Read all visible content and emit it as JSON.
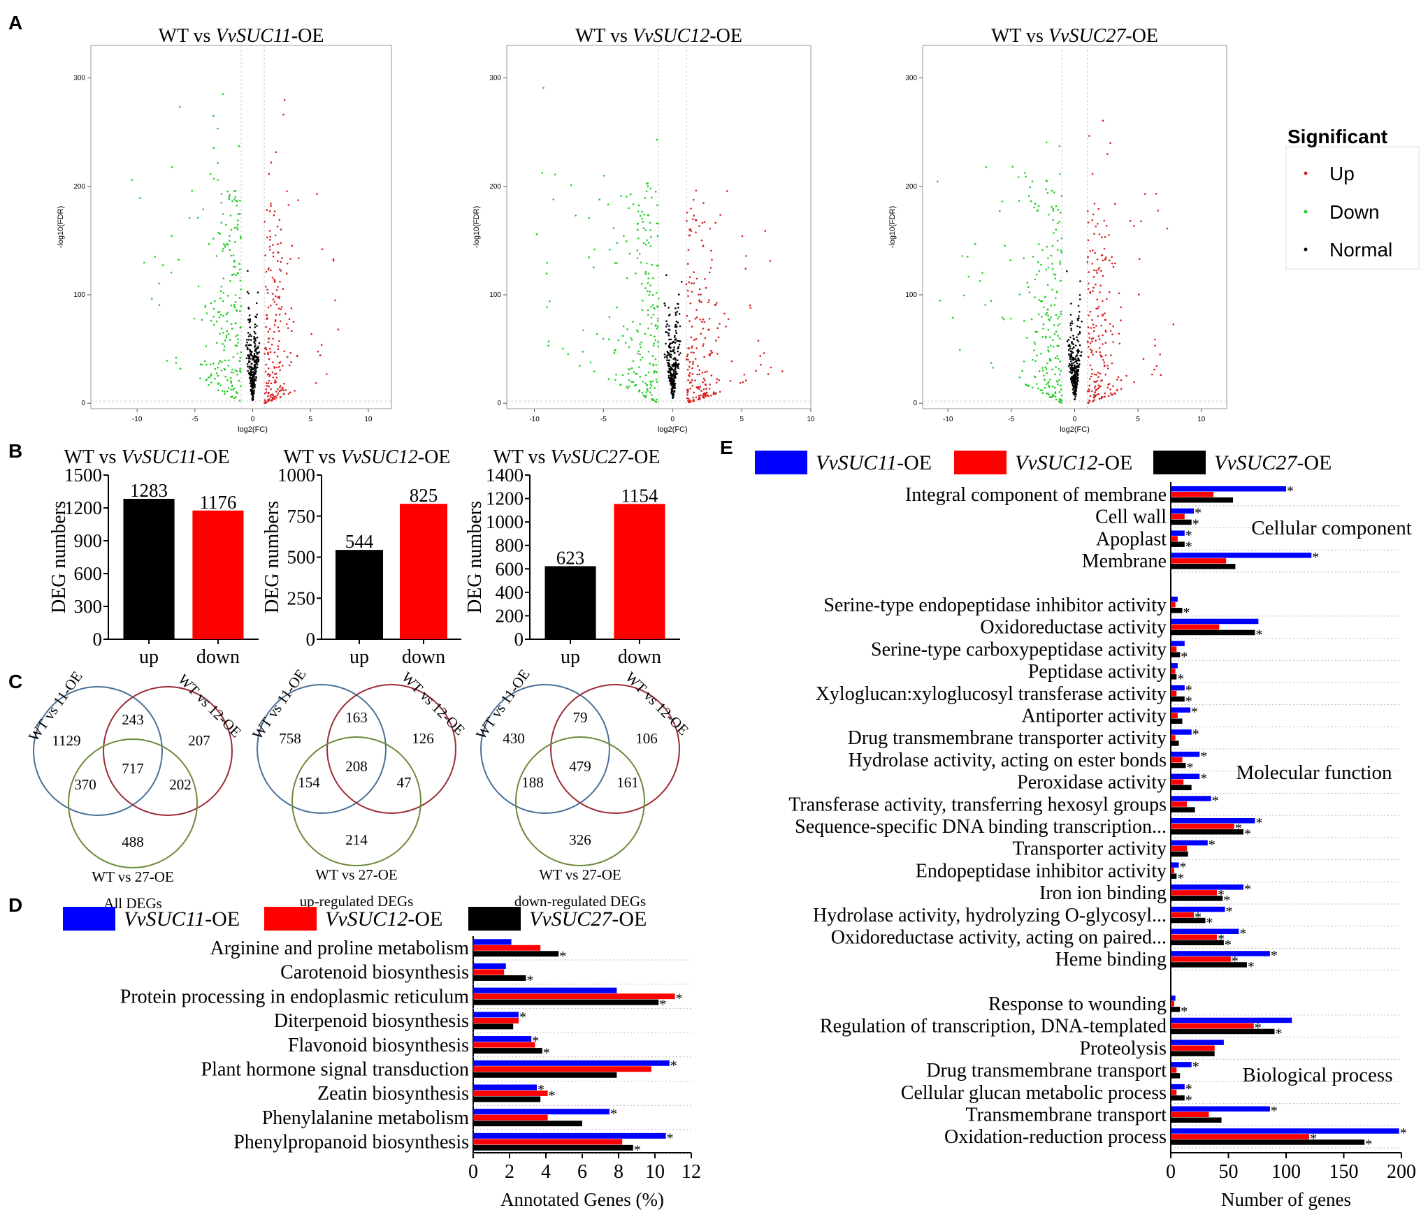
{
  "panel_letters": {
    "a": "A",
    "b": "B",
    "c": "C",
    "d": "D",
    "e": "E"
  },
  "legend_A": {
    "title": "Significant",
    "items": [
      {
        "label": "Up",
        "color": "#d62020"
      },
      {
        "label": "Down",
        "color": "#22cc22"
      },
      {
        "label": "Normal",
        "color": "#000000"
      }
    ]
  },
  "chart_data": [
    {
      "id": "A1",
      "type": "scatter",
      "title_prefix": "WT vs ",
      "title_gene": "VvSUC11",
      "title_suffix": "-OE",
      "xlabel": "log2(FC)",
      "ylabel": "-log10(FDR)",
      "xlim": [
        -14,
        12
      ],
      "ylim": [
        -5,
        330
      ],
      "xticks": [
        "-10",
        "-5",
        "0",
        "5",
        "10"
      ],
      "yticks": [
        "0",
        "100",
        "200",
        "300"
      ],
      "series": [
        "Up",
        "Down",
        "Normal"
      ]
    },
    {
      "id": "A2",
      "type": "scatter",
      "title_prefix": "WT vs ",
      "title_gene": "VvSUC12",
      "title_suffix": "-OE",
      "xlabel": "log2(FC)",
      "ylabel": "-log10(FDR)",
      "xlim": [
        -12,
        10
      ],
      "ylim": [
        -5,
        330
      ],
      "xticks": [
        "-10",
        "-5",
        "0",
        "5",
        "10"
      ],
      "yticks": [
        "0",
        "100",
        "200",
        "300"
      ],
      "series": [
        "Up",
        "Down",
        "Normal"
      ]
    },
    {
      "id": "A3",
      "type": "scatter",
      "title_prefix": "WT vs ",
      "title_gene": "VvSUC27",
      "title_suffix": "-OE",
      "xlabel": "log2(FC)",
      "ylabel": "-log10(FDR)",
      "xlim": [
        -12,
        12
      ],
      "ylim": [
        -5,
        330
      ],
      "xticks": [
        "-10",
        "-5",
        "0",
        "5",
        "10"
      ],
      "yticks": [
        "0",
        "100",
        "200",
        "300"
      ],
      "series": [
        "Up",
        "Down",
        "Normal"
      ]
    },
    {
      "id": "B1",
      "type": "bar",
      "title_prefix": "WT vs ",
      "title_gene": "VvSUC11",
      "title_suffix": "-OE",
      "ylabel": "DEG numbers",
      "categories": [
        "up",
        "down"
      ],
      "values": [
        1283,
        1176
      ],
      "value_labels": [
        "1283",
        "1176"
      ],
      "colors": [
        "#000000",
        "#ff0000"
      ],
      "ylim": [
        0,
        1500
      ],
      "yticks": [
        "0",
        "300",
        "600",
        "900",
        "1200",
        "1500"
      ]
    },
    {
      "id": "B2",
      "type": "bar",
      "title_prefix": "WT vs ",
      "title_gene": "VvSUC12",
      "title_suffix": "-OE",
      "ylabel": "DEG numbers",
      "categories": [
        "up",
        "down"
      ],
      "values": [
        544,
        825
      ],
      "value_labels": [
        "544",
        "825"
      ],
      "colors": [
        "#000000",
        "#ff0000"
      ],
      "ylim": [
        0,
        1000
      ],
      "yticks": [
        "0",
        "250",
        "500",
        "750",
        "1000"
      ]
    },
    {
      "id": "B3",
      "type": "bar",
      "title_prefix": "WT vs ",
      "title_gene": "VvSUC27",
      "title_suffix": "-OE",
      "ylabel": "DEG numbers",
      "categories": [
        "up",
        "down"
      ],
      "values": [
        623,
        1154
      ],
      "value_labels": [
        "623",
        "1154"
      ],
      "colors": [
        "#000000",
        "#ff0000"
      ],
      "ylim": [
        0,
        1400
      ],
      "yticks": [
        "0",
        "200",
        "400",
        "600",
        "800",
        "1000",
        "1200",
        "1400"
      ]
    },
    {
      "id": "C1",
      "type": "venn",
      "set_labels": [
        "WT vs 11-OE",
        "WT vs 12-OE",
        "WT vs 27-OE"
      ],
      "counts": {
        "a": "1129",
        "b": "207",
        "c": "488",
        "ab": "243",
        "ac": "370",
        "bc": "202",
        "abc": "717"
      },
      "caption": "All DEGs"
    },
    {
      "id": "C2",
      "type": "venn",
      "set_labels": [
        "WT vs 11-OE",
        "WT vs 12-OE",
        "WT vs 27-OE"
      ],
      "counts": {
        "a": "758",
        "b": "126",
        "c": "214",
        "ab": "163",
        "ac": "154",
        "bc": "47",
        "abc": "208"
      },
      "caption": "up-regulated DEGs"
    },
    {
      "id": "C3",
      "type": "venn",
      "set_labels": [
        "WT vs 11-OE",
        "WT vs 12-OE",
        "WT vs 27-OE"
      ],
      "counts": {
        "a": "430",
        "b": "106",
        "c": "326",
        "ab": "79",
        "ac": "188",
        "bc": "161",
        "abc": "479"
      },
      "caption": "down-regulated DEGs"
    },
    {
      "id": "D",
      "type": "bar",
      "orientation": "horizontal",
      "xlabel": "Annotated Genes (%)",
      "xlim": [
        0,
        12
      ],
      "xticks": [
        "0",
        "2",
        "4",
        "6",
        "8",
        "10",
        "12"
      ],
      "legend": [
        {
          "gene": "VvSUC11",
          "suffix": "-OE",
          "color": "#0000ff"
        },
        {
          "gene": "VvSUC12",
          "suffix": "-OE",
          "color": "#ff0000"
        },
        {
          "gene": "VvSUC27",
          "suffix": "-OE",
          "color": "#000000"
        }
      ],
      "categories": [
        "Arginine and proline metabolism",
        "Carotenoid biosynthesis",
        "Protein processing in endoplasmic reticulum",
        "Diterpenoid biosynthesis",
        "Flavonoid biosynthesis",
        "Plant hormone signal transduction",
        "Zeatin biosynthesis",
        "Phenylalanine metabolism",
        "Phenylpropanoid biosynthesis"
      ],
      "series": [
        {
          "name": "VvSUC11-OE",
          "values": [
            2.1,
            1.8,
            7.9,
            2.5,
            3.2,
            10.8,
            3.5,
            7.5,
            10.6
          ]
        },
        {
          "name": "VvSUC12-OE",
          "values": [
            3.7,
            1.7,
            11.1,
            2.5,
            3.4,
            9.8,
            4.1,
            4.1,
            8.2
          ]
        },
        {
          "name": "VvSUC27-OE",
          "values": [
            4.7,
            2.9,
            10.2,
            2.2,
            3.8,
            7.9,
            3.7,
            6.0,
            8.8
          ]
        }
      ],
      "stars": [
        [
          0,
          0,
          1
        ],
        [
          0,
          0,
          1
        ],
        [
          0,
          1,
          1
        ],
        [
          1,
          0,
          0
        ],
        [
          1,
          0,
          1
        ],
        [
          1,
          0,
          0
        ],
        [
          1,
          1,
          0
        ],
        [
          1,
          0,
          0
        ],
        [
          1,
          0,
          1
        ]
      ]
    },
    {
      "id": "E",
      "type": "bar",
      "orientation": "horizontal",
      "xlabel": "Number of genes",
      "xlim": [
        0,
        200
      ],
      "xticks": [
        "0",
        "50",
        "100",
        "150",
        "200"
      ],
      "legend": [
        {
          "gene": "VvSUC11",
          "suffix": "-OE",
          "color": "#0000ff"
        },
        {
          "gene": "VvSUC12",
          "suffix": "-OE",
          "color": "#ff0000"
        },
        {
          "gene": "VvSUC27",
          "suffix": "-OE",
          "color": "#000000"
        }
      ],
      "groups": [
        {
          "name": "Cellular component",
          "categories": [
            "Integral component of membrane",
            "Cell wall",
            "Apoplast",
            "Membrane"
          ],
          "values": [
            [
              100,
              37,
              54
            ],
            [
              20,
              12,
              18
            ],
            [
              12,
              6,
              12
            ],
            [
              122,
              48,
              56
            ]
          ],
          "stars": [
            [
              1,
              0,
              0
            ],
            [
              1,
              0,
              1
            ],
            [
              1,
              0,
              1
            ],
            [
              1,
              0,
              0
            ]
          ]
        },
        {
          "name": "Molecular function",
          "categories": [
            "Serine-type endopeptidase inhibitor activity",
            "Oxidoreductase activity",
            "Serine-type carboxypeptidase activity",
            "Peptidase activity",
            "Xyloglucan:xyloglucosyl transferase activity",
            "Antiporter activity",
            "Drug transmembrane transporter activity",
            "Hydrolase activity, acting on ester bonds",
            "Peroxidase activity",
            "Transferase activity, transferring hexosyl groups",
            "Sequence-specific DNA binding transcription...",
            "Transporter activity",
            "Endopeptidase inhibitor activity",
            "Iron ion binding",
            "Hydrolase activity, hydrolyzing O-glycosyl...",
            "Oxidoreductase activity, acting on paired...",
            "Heme binding"
          ],
          "values": [
            [
              6,
              4,
              10
            ],
            [
              76,
              42,
              73
            ],
            [
              12,
              5,
              8
            ],
            [
              6,
              4,
              5
            ],
            [
              12,
              5,
              12
            ],
            [
              17,
              6,
              10
            ],
            [
              18,
              4,
              7
            ],
            [
              25,
              10,
              13
            ],
            [
              25,
              11,
              18
            ],
            [
              35,
              14,
              21
            ],
            [
              73,
              55,
              63
            ],
            [
              32,
              14,
              15
            ],
            [
              7,
              3,
              5
            ],
            [
              63,
              40,
              45
            ],
            [
              47,
              20,
              30
            ],
            [
              59,
              40,
              46
            ],
            [
              86,
              52,
              66
            ]
          ],
          "stars": [
            [
              0,
              0,
              1
            ],
            [
              0,
              0,
              1
            ],
            [
              0,
              0,
              1
            ],
            [
              0,
              0,
              1
            ],
            [
              1,
              0,
              1
            ],
            [
              1,
              0,
              0
            ],
            [
              1,
              0,
              0
            ],
            [
              1,
              0,
              1
            ],
            [
              1,
              0,
              0
            ],
            [
              1,
              0,
              0
            ],
            [
              1,
              1,
              1
            ],
            [
              1,
              0,
              0
            ],
            [
              1,
              0,
              1
            ],
            [
              1,
              1,
              1
            ],
            [
              1,
              1,
              1
            ],
            [
              1,
              1,
              1
            ],
            [
              1,
              1,
              1
            ]
          ]
        },
        {
          "name": "Biological process",
          "categories": [
            "Response to wounding",
            "Regulation of transcription, DNA-templated",
            "Proteolysis",
            "Drug transmembrane transport",
            "Cellular glucan metabolic process",
            "Transmembrane transport",
            "Oxidation-reduction process"
          ],
          "values": [
            [
              4,
              3,
              8
            ],
            [
              105,
              72,
              90
            ],
            [
              46,
              38,
              38
            ],
            [
              18,
              5,
              8
            ],
            [
              12,
              5,
              12
            ],
            [
              86,
              33,
              44
            ],
            [
              198,
              120,
              168
            ]
          ],
          "stars": [
            [
              0,
              0,
              1
            ],
            [
              0,
              1,
              1
            ],
            [
              0,
              0,
              0
            ],
            [
              1,
              0,
              0
            ],
            [
              1,
              0,
              1
            ],
            [
              1,
              0,
              0
            ],
            [
              1,
              1,
              1
            ]
          ]
        }
      ]
    }
  ]
}
